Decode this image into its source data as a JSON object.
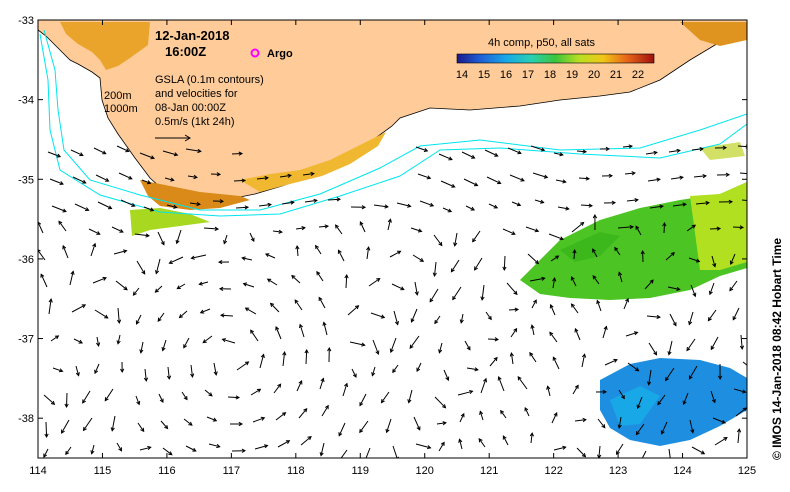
{
  "map": {
    "date": "12-Jan-2018",
    "time": "16:00Z",
    "argo_label": "Argo",
    "contour_200": "200m",
    "contour_1000": "1000m",
    "gsla_lines": [
      "GSLA (0.1m contours)",
      "and velocities for",
      "08-Jan 00:00Z",
      "0.5m/s (1kt 24h)"
    ],
    "colorbar_title": "4h comp, p50, all sats",
    "colorbar_ticks": [
      "14",
      "15",
      "16",
      "17",
      "18",
      "19",
      "20",
      "21",
      "22"
    ],
    "credit": "© IMOS 14-Jan-2018 08:42 Hobart Time",
    "lat_labels": [
      "-33",
      "-34",
      "-35",
      "-36",
      "-37",
      "-38"
    ],
    "lon_labels": [
      "114",
      "115",
      "116",
      "117",
      "118",
      "119",
      "120",
      "121",
      "122",
      "123",
      "124",
      "125"
    ],
    "extent": {
      "lon_min": 114,
      "lon_max": 125,
      "lat_min": -38.5,
      "lat_max": -33
    },
    "colors": {
      "land": "#ffcc99",
      "argo": "#ff00ff",
      "contour": "#00e5ee",
      "warm": "#e8a020",
      "green": "#4cc424",
      "blue": "#1e8fe0"
    }
  }
}
